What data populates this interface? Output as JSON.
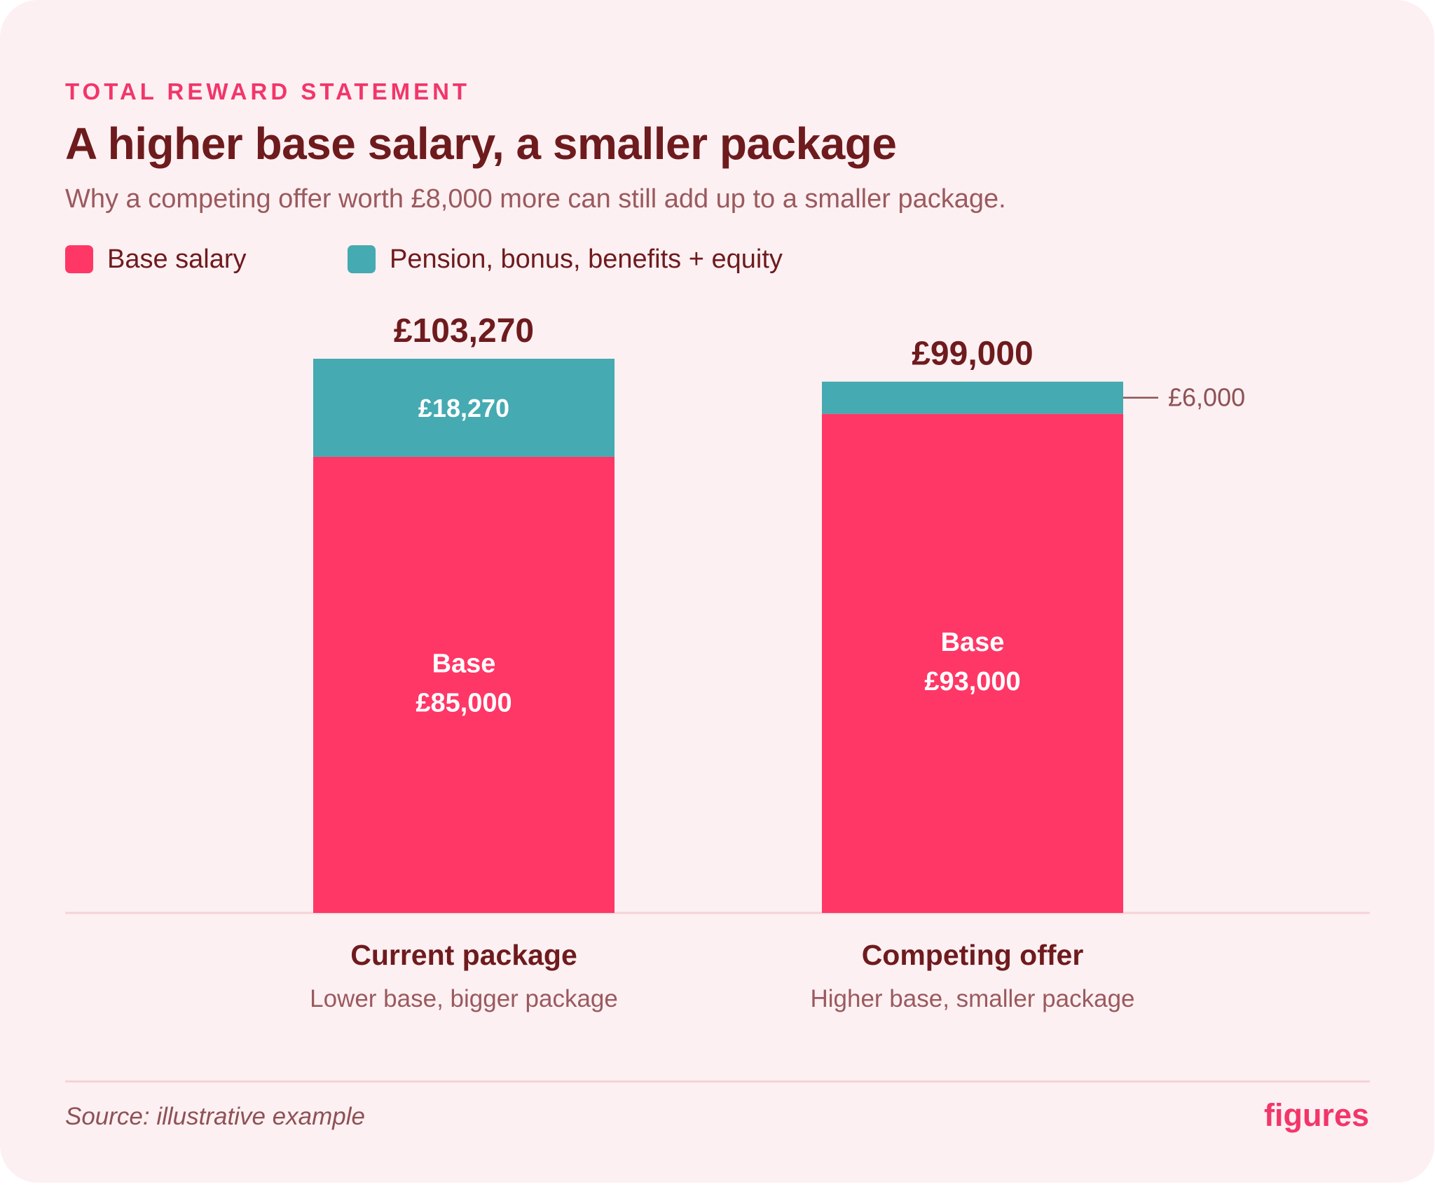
{
  "header": {
    "eyebrow": "TOTAL REWARD STATEMENT",
    "title": "A higher base salary, a smaller package",
    "subtitle": "Why a competing offer worth £8,000 more can still add up to a smaller package."
  },
  "legend": [
    {
      "label": "Base salary",
      "color": "#ff3766"
    },
    {
      "label": "Pension, bonus, benefits + equity",
      "color": "#45aab1"
    }
  ],
  "chart_data": {
    "type": "bar",
    "stacked": true,
    "categories": [
      "Current package",
      "Competing offer"
    ],
    "category_notes": [
      "Lower base, bigger package",
      "Higher base, smaller package"
    ],
    "series": [
      {
        "name": "Base salary",
        "values": [
          85000,
          93000
        ],
        "color": "#ff3766"
      },
      {
        "name": "Pension, bonus, benefits + equity",
        "values": [
          18270,
          6000
        ],
        "color": "#45aab1"
      }
    ],
    "totals": [
      103270,
      99000
    ],
    "total_labels": [
      "£103,270",
      "£99,000"
    ],
    "base_prefix": "Base",
    "base_labels": [
      "£85,000",
      "£93,000"
    ],
    "extra_labels": [
      "£18,270",
      "£6,000"
    ],
    "ylim": [
      0,
      103270
    ],
    "grid": false,
    "legend_position": "top-left"
  },
  "footer": {
    "source": "Source: illustrative example",
    "brand": "figures"
  }
}
